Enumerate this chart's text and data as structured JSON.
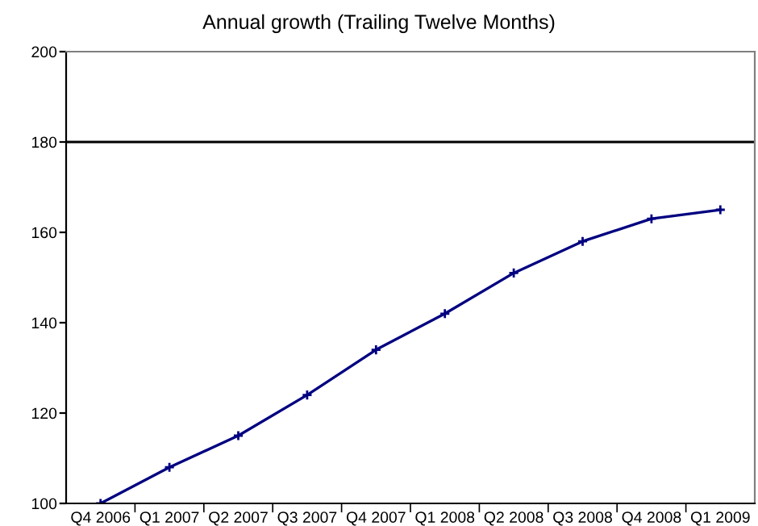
{
  "chart_data": {
    "type": "line",
    "title": "Annual growth (Trailing Twelve Months)",
    "categories": [
      "Q4 2006",
      "Q1 2007",
      "Q2 2007",
      "Q3 2007",
      "Q4 2007",
      "Q1 2008",
      "Q2 2008",
      "Q3 2008",
      "Q4 2008",
      "Q1 2009"
    ],
    "series": [
      {
        "color": "#000080",
        "values": [
          100,
          108,
          115,
          124,
          134,
          142,
          151,
          158,
          163,
          165
        ]
      }
    ],
    "ylim": [
      100,
      200
    ],
    "yticks": [
      100,
      120,
      140,
      160,
      180,
      200
    ],
    "ref_lines": [
      {
        "axis": "y",
        "value": 180,
        "color": "#000000"
      }
    ],
    "marker": "cross",
    "grid": false,
    "legend": false
  }
}
